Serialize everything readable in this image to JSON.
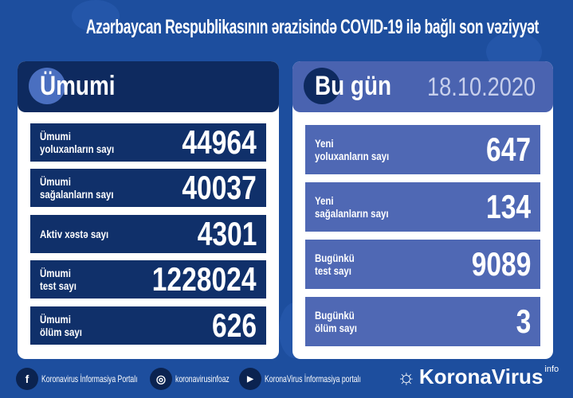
{
  "title": "Azərbaycan Respublikasının ərazisində COVID-19 ilə bağlı son vəziyyət",
  "colors": {
    "background": "#1d4e9e",
    "left_header": "#0e2a5f",
    "left_rows": "#10306a",
    "right_header": "#4a63b0",
    "right_rows": "#4f68b4",
    "date": "#c8d0ec"
  },
  "total": {
    "heading": "Ümumi",
    "rows": [
      {
        "label1": "Ümumi",
        "label2": "yoluxanların sayı",
        "value": "44964"
      },
      {
        "label1": "Ümumi",
        "label2": "sağalanların sayı",
        "value": "40037"
      },
      {
        "label1": "Aktiv xəstə sayı",
        "label2": "",
        "value": "4301"
      },
      {
        "label1": "Ümumi",
        "label2": "test sayı",
        "value": "1228024"
      },
      {
        "label1": "Ümumi",
        "label2": "ölüm sayı",
        "value": "626"
      }
    ]
  },
  "today": {
    "heading": "Bu gün",
    "date": "18.10.2020",
    "rows": [
      {
        "label1": "Yeni",
        "label2": "yoluxanların sayı",
        "value": "647"
      },
      {
        "label1": "Yeni",
        "label2": "sağalanların sayı",
        "value": "134"
      },
      {
        "label1": "Bugünkü",
        "label2": "test sayı",
        "value": "9089"
      },
      {
        "label1": "Bugünkü",
        "label2": "ölüm sayı",
        "value": "3"
      }
    ]
  },
  "footer": {
    "facebook": "Koronavirus İnformasiya Portalı",
    "instagram": "koronavirusinfoaz",
    "youtube": "KoronaVirus İnformasiya portalı",
    "logo": "KoronaVirus",
    "logo_sup": "info"
  }
}
